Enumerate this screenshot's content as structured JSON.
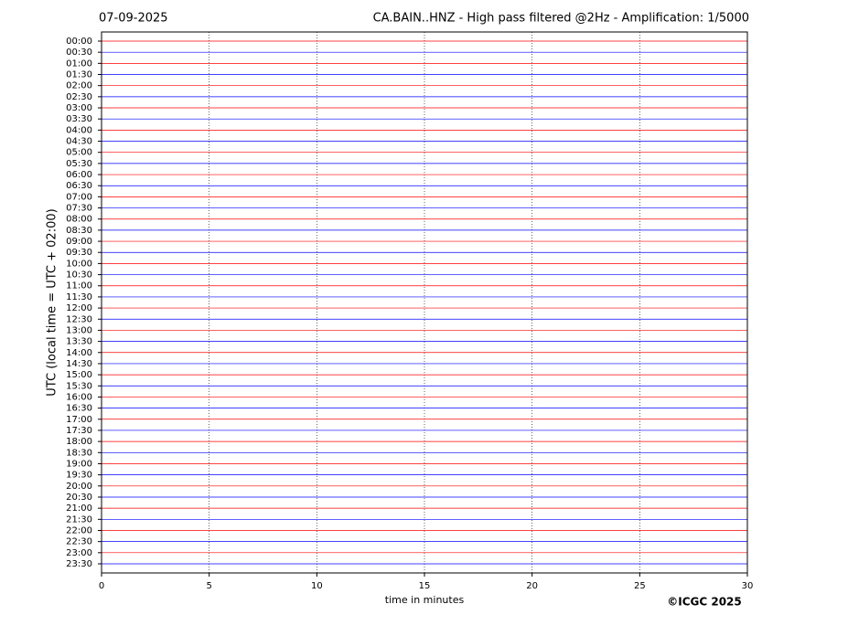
{
  "chart_data": {
    "type": "helicorder",
    "date": "07-09-2025",
    "title": "CA.BAIN..HNZ - High pass filtered @2Hz - Amplification: 1/5000",
    "y_label": "UTC (local time = UTC + 02:00)",
    "x_label": "time in minutes",
    "copyright": "©ICGC 2025",
    "categories": [
      "00:00",
      "00:30",
      "01:00",
      "01:30",
      "02:00",
      "02:30",
      "03:00",
      "03:30",
      "04:00",
      "04:30",
      "05:00",
      "05:30",
      "06:00",
      "06:30",
      "07:00",
      "07:30",
      "08:00",
      "08:30",
      "09:00",
      "09:30",
      "10:00",
      "10:30",
      "11:00",
      "11:30",
      "12:00",
      "12:30",
      "13:00",
      "13:30",
      "14:00",
      "14:30",
      "15:00",
      "15:30",
      "16:00",
      "16:30",
      "17:00",
      "17:30",
      "18:00",
      "18:30",
      "19:00",
      "19:30",
      "20:00",
      "20:30",
      "21:00",
      "21:30",
      "22:00",
      "22:30",
      "23:00",
      "23:30"
    ],
    "colors": [
      "#ff0000",
      "#0000ff"
    ],
    "xlim": [
      0,
      30
    ],
    "xticks": [
      0,
      5,
      10,
      15,
      20,
      25,
      30
    ],
    "grid": true
  }
}
